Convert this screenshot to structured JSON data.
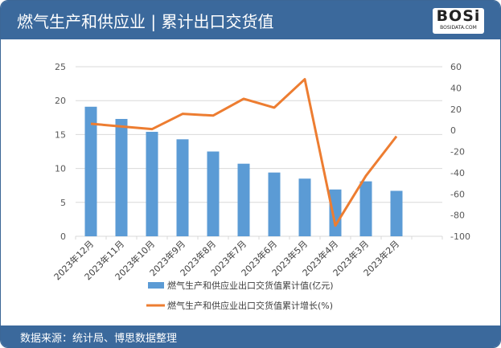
{
  "header": {
    "title": "燃气生产和供应业 | 累计出口交货值",
    "logo_text": "BOSi",
    "logo_sub": "BOSIDATA.COM"
  },
  "footer": {
    "source": "数据来源：统计局、博思数据整理"
  },
  "colors": {
    "bar": "#5b9bd5",
    "line": "#ed7d31",
    "header": "#3b699c"
  },
  "chart_data": {
    "type": "bar+line",
    "categories": [
      "2023年12月",
      "2023年11月",
      "2023年10月",
      "2023年9月",
      "2023年8月",
      "2023年7月",
      "2023年6月",
      "2023年5月",
      "2023年4月",
      "2023年3月",
      "2023年2月"
    ],
    "series": [
      {
        "name": "燃气生产和供应业出口交货值累计值(亿元)",
        "type": "bar",
        "axis": "left",
        "values": [
          19.1,
          17.3,
          15.4,
          14.3,
          12.5,
          10.7,
          9.4,
          8.5,
          6.9,
          8.1,
          6.7
        ]
      },
      {
        "name": "燃气生产和供应业出口交货值累计增长(%)",
        "type": "line",
        "axis": "right",
        "values": [
          6.2,
          3.6,
          1.1,
          15.5,
          13.9,
          29.7,
          21.4,
          48.2,
          -89.9,
          -43.0,
          -5.7
        ]
      }
    ],
    "y_left": {
      "min": 0,
      "max": 25,
      "ticks": [
        0,
        5,
        10,
        15,
        20,
        25
      ]
    },
    "y_right": {
      "min": -100,
      "max": 60,
      "ticks": [
        -100,
        -80,
        -60,
        -40,
        -20,
        0,
        20,
        40,
        60
      ]
    },
    "grid": true,
    "legend": "bottom"
  }
}
